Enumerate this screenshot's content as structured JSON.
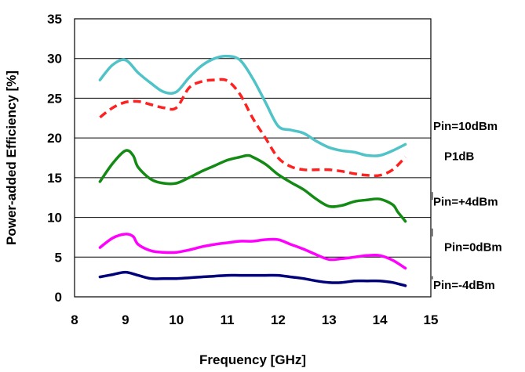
{
  "chart_data": {
    "type": "line",
    "xlabel": "Frequency [GHz]",
    "ylabel": "Power-added Efficiency [%]",
    "xlim": [
      8,
      15
    ],
    "ylim": [
      0,
      35
    ],
    "xticks": [
      "8",
      "9",
      "10",
      "11",
      "12",
      "13",
      "14",
      "15"
    ],
    "yticks": [
      "0",
      "5",
      "10",
      "15",
      "20",
      "25",
      "30",
      "35"
    ],
    "grid": "horizontal",
    "series": [
      {
        "name": "Pin=10dBm",
        "color": "#4fc3c7",
        "dash": false,
        "x": [
          8.5,
          8.75,
          9.0,
          9.25,
          9.5,
          9.75,
          10.0,
          10.25,
          10.5,
          10.75,
          11.0,
          11.25,
          11.5,
          11.75,
          12.0,
          12.25,
          12.5,
          12.75,
          13.0,
          13.25,
          13.5,
          13.75,
          14.0,
          14.25,
          14.5
        ],
        "y": [
          27.3,
          29.2,
          29.8,
          28.2,
          26.9,
          25.8,
          25.8,
          27.6,
          29.1,
          30.0,
          30.3,
          29.8,
          27.5,
          24.5,
          21.5,
          21.0,
          20.6,
          19.6,
          18.8,
          18.4,
          18.2,
          17.8,
          17.8,
          18.4,
          19.2
        ]
      },
      {
        "name": "P1dB",
        "color": "#ff2020",
        "dash": true,
        "x": [
          8.5,
          8.75,
          9.0,
          9.25,
          9.5,
          9.75,
          10.0,
          10.25,
          10.5,
          10.75,
          11.0,
          11.25,
          11.5,
          11.75,
          12.0,
          12.25,
          12.5,
          12.75,
          13.0,
          13.25,
          13.5,
          13.75,
          14.0,
          14.25,
          14.5
        ],
        "y": [
          22.6,
          23.8,
          24.5,
          24.6,
          24.2,
          23.8,
          23.8,
          26.3,
          27.1,
          27.3,
          27.2,
          25.5,
          22.5,
          20.0,
          17.5,
          16.4,
          16.0,
          16.0,
          16.0,
          15.8,
          15.5,
          15.3,
          15.3,
          16.0,
          17.6
        ]
      },
      {
        "name": "Pin=+4dBm",
        "color": "#138a13",
        "dash": false,
        "x": [
          8.5,
          8.75,
          9.0,
          9.15,
          9.25,
          9.5,
          9.75,
          10.0,
          10.25,
          10.5,
          10.75,
          11.0,
          11.25,
          11.4,
          11.5,
          11.75,
          12.0,
          12.25,
          12.5,
          12.75,
          13.0,
          13.25,
          13.5,
          13.75,
          14.0,
          14.25,
          14.35,
          14.5
        ],
        "y": [
          14.5,
          16.8,
          18.4,
          17.8,
          16.3,
          14.8,
          14.3,
          14.3,
          15.0,
          15.8,
          16.5,
          17.2,
          17.6,
          17.8,
          17.6,
          16.7,
          15.4,
          14.4,
          13.5,
          12.3,
          11.4,
          11.5,
          12.0,
          12.2,
          12.3,
          11.6,
          10.7,
          9.5
        ]
      },
      {
        "name": "Pin=0dBm",
        "color": "#ff00ff",
        "dash": false,
        "x": [
          8.5,
          8.75,
          9.0,
          9.15,
          9.25,
          9.5,
          9.75,
          10.0,
          10.25,
          10.5,
          10.75,
          11.0,
          11.25,
          11.5,
          11.75,
          12.0,
          12.25,
          12.5,
          12.75,
          13.0,
          13.25,
          13.5,
          13.75,
          14.0,
          14.25,
          14.5
        ],
        "y": [
          6.2,
          7.4,
          7.9,
          7.6,
          6.6,
          5.8,
          5.6,
          5.6,
          5.9,
          6.3,
          6.6,
          6.8,
          7.0,
          7.0,
          7.2,
          7.2,
          6.6,
          6.0,
          5.3,
          4.7,
          4.8,
          5.0,
          5.2,
          5.2,
          4.6,
          3.6
        ]
      },
      {
        "name": "Pin=-4dBm",
        "color": "#00007a",
        "dash": false,
        "x": [
          8.5,
          8.75,
          9.0,
          9.25,
          9.5,
          9.75,
          10.0,
          10.25,
          10.5,
          10.75,
          11.0,
          11.25,
          11.5,
          11.75,
          12.0,
          12.25,
          12.5,
          12.75,
          13.0,
          13.25,
          13.5,
          13.75,
          14.0,
          14.25,
          14.5
        ],
        "y": [
          2.5,
          2.8,
          3.1,
          2.7,
          2.3,
          2.3,
          2.3,
          2.4,
          2.5,
          2.6,
          2.7,
          2.7,
          2.7,
          2.7,
          2.7,
          2.5,
          2.3,
          2.0,
          1.8,
          1.8,
          2.0,
          2.0,
          2.0,
          1.8,
          1.4
        ]
      }
    ],
    "series_labels": [
      {
        "text": "Pin=10dBm",
        "y_level": 20.0
      },
      {
        "text": "P1dB",
        "y_level": 16.2
      },
      {
        "text": "Pin=+4dBm",
        "y_level": 10.5
      },
      {
        "text": "Pin=0dBm",
        "y_level": 4.8
      },
      {
        "text": "Pin=-4dBm",
        "y_level": 0.0
      }
    ]
  }
}
